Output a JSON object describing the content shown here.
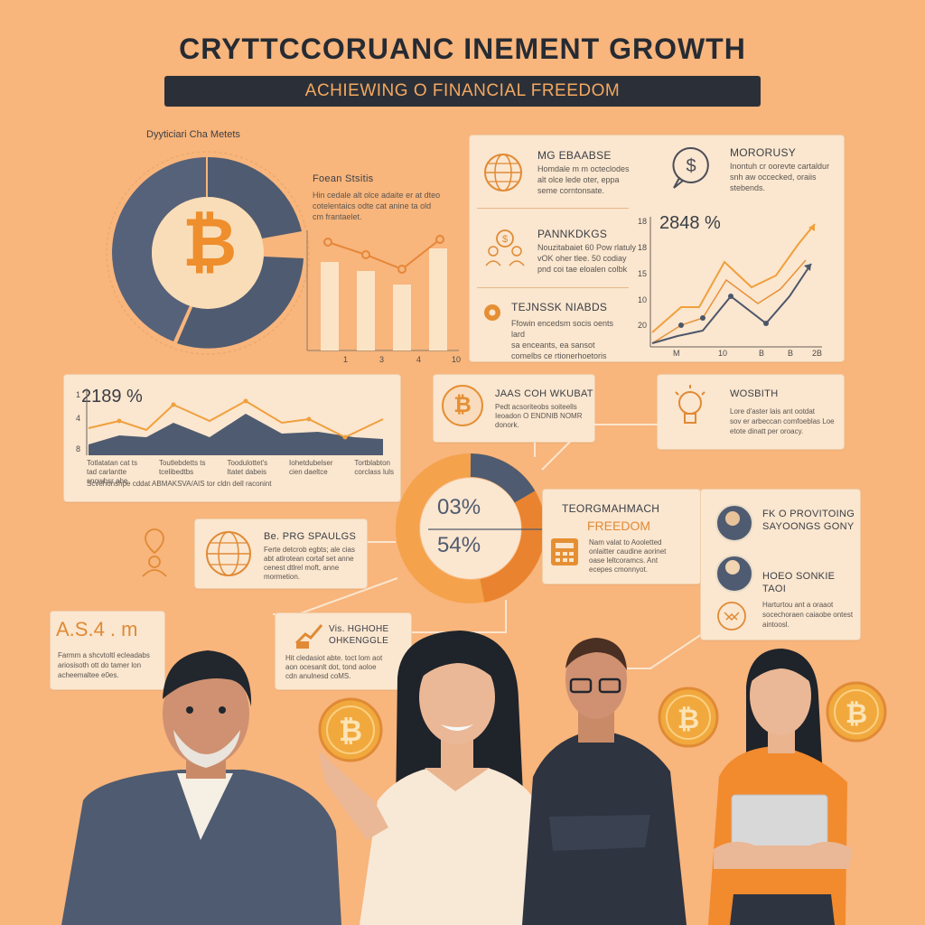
{
  "header": {
    "title": "CRYTTCCORUANC INEMENT GROWTH",
    "subtitle": "ACHIEWING O FINANCIAL FREEDOM"
  },
  "top_left": {
    "label": "Dyyticiari Cha Metets",
    "side_heading": "Foean Stsitis",
    "side_text": [
      "Hin cedale alt olce adaite er at dteo",
      "cotelentaics odte cat anine ta old",
      "cm frantaelet."
    ],
    "bar_ticks": [
      "1",
      "3",
      "4",
      "10"
    ]
  },
  "top_right": {
    "items": [
      {
        "heading": "MG EBAABSE",
        "text": [
          "Homdale m m octeclodes",
          "alt olce lede oter, eppa",
          "seme corntonsate."
        ]
      },
      {
        "heading": "MORORUSY",
        "text": [
          "Inontuh cr oorevte cartaldur",
          "snh aw occecked, oraiis",
          "stebends."
        ]
      },
      {
        "heading": "PANNKDKGS",
        "text": [
          "Nouzitabaiet 60 Pow rlatuly",
          "vOK oher tlee. 50 codiay",
          "pnd coi tae eloalen colbk"
        ]
      },
      {
        "heading": "TEJNSSK NIABDS",
        "text": [
          "Ffowin encedsm socis oents lard",
          "sa enceants, ea sansot",
          "comelbs ce rtionerhoetoris"
        ]
      }
    ],
    "percent": "2848 %",
    "y_ticks": [
      "18",
      "18",
      "15",
      "10",
      "20"
    ],
    "x_ticks": [
      "M",
      "10",
      "B",
      "B",
      "2B"
    ]
  },
  "middle_left": {
    "percent": "2189 %",
    "y_ticks": [
      "1",
      "4",
      "8"
    ],
    "labels": [
      [
        "Totlatatan cat ts",
        "tad carlantte",
        "snowhsr ahe"
      ],
      [
        "Toutlebdetts ts",
        "tcelibedtbs",
        "dot Arakanathi"
      ],
      [
        "Toodulottet's",
        "Itatet dabeis",
        "VATMYETAT Ior"
      ],
      [
        "Iohetdubelser",
        "cien daeltce",
        "dan ourtie Iodanhrt"
      ],
      [
        "Tortblabton",
        "corclass luls",
        ""
      ]
    ],
    "footer": "Scvehonshpe  cddat ABMAKSVA/AIS tor cldn dell raconint"
  },
  "middle_cards": {
    "bitcoin_card": {
      "heading": "JAAS COH WKUBAT",
      "text": [
        "Pedt acsoriteobs soiteells",
        "Ieoadon O ENDNIB NOMR",
        "donork."
      ]
    },
    "idea_card": {
      "heading": "WOSBITH",
      "text": [
        "Lore d'aster lais ant ootdat",
        "sov er arbeccan comfoeblas Loe",
        "etote dinatt per oroacy."
      ]
    },
    "globe_card": {
      "heading": "Be. PRG SPAULGS",
      "text": [
        "Ferte detcrob egbts; ale cias",
        "abt atlrotean cortaf set anne",
        "cenest dtlrel moft, anne",
        "mormetion."
      ]
    }
  },
  "center_donut": {
    "value_top": "03%",
    "value_bottom": "54%"
  },
  "freedom_card": {
    "heading_1": "TEORGMAHMACH",
    "heading_2": "FREEDOM",
    "text": [
      "Nam valat to Aooletted",
      "onlaitter caudine aorinet",
      "oase leltcoramcs. Ant",
      "ecepes cmonnyot."
    ]
  },
  "right_card": {
    "items": [
      {
        "heading": [
          "FK O PROVITOING",
          "SAYOONGS GONY"
        ]
      },
      {
        "heading": [
          "HOEO SONKIE",
          "TAOI"
        ],
        "text": [
          "Harturtou ant a oraaot",
          "socechoraen caiaobe ontest",
          "aintoosl."
        ]
      }
    ]
  },
  "bottom_left": {
    "big": "A.S.4 . m",
    "text": [
      "Farmm a shcvtoltl ecleadabs",
      "ariosisoth ott do tamer lon",
      "acheemaltee e0es."
    ]
  },
  "bottom_mid": {
    "heading": [
      "Vis. HGHOHE",
      "OHKENGGLE"
    ],
    "text": [
      "Hit cledasiot abte. toct lom aot",
      "aon ocesanlt dot, tond aoloe",
      "cdn anulnesd coMS."
    ]
  },
  "colors": {
    "background": "#f8b57c",
    "card": "#fbe6cf",
    "navy": "#4f5b70",
    "orange": "#f29a3e",
    "dark": "#2b3038"
  }
}
